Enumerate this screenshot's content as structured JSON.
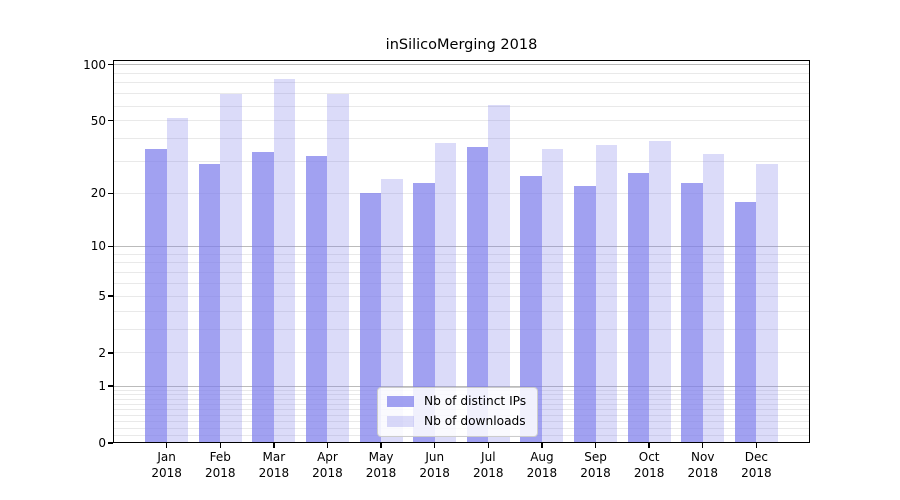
{
  "chart_data": {
    "type": "bar",
    "title": "inSilicoMerging 2018",
    "categories": [
      "Jan",
      "Feb",
      "Mar",
      "Apr",
      "May",
      "Jun",
      "Jul",
      "Aug",
      "Sep",
      "Oct",
      "Nov",
      "Dec"
    ],
    "x_tick_year": "2018",
    "series": [
      {
        "name": "Nb of distinct IPs",
        "color": "rgba(125,125,235,0.72)",
        "values": [
          35,
          29,
          34,
          32,
          20,
          23,
          36,
          25,
          22,
          26,
          23,
          18
        ]
      },
      {
        "name": "Nb of downloads",
        "color": "rgba(125,125,235,0.28)",
        "values": [
          52,
          70,
          84,
          70,
          24,
          38,
          61,
          35,
          37,
          39,
          33,
          29
        ]
      }
    ],
    "xlabel": "",
    "ylabel": "",
    "yscale": "log1p",
    "ylim": [
      0,
      106
    ],
    "yticks": [
      0,
      1,
      2,
      5,
      10,
      20,
      50,
      100
    ],
    "grid": {
      "major": [
        1,
        10,
        100
      ],
      "minor": [
        0.1,
        0.2,
        0.3,
        0.4,
        0.5,
        0.6,
        0.7,
        0.8,
        0.9,
        2,
        3,
        4,
        5,
        6,
        7,
        8,
        9,
        20,
        30,
        40,
        50,
        60,
        70,
        80,
        90
      ]
    },
    "legend": {
      "position": "lower center",
      "entries": [
        "Nb of distinct IPs",
        "Nb of downloads"
      ]
    }
  }
}
